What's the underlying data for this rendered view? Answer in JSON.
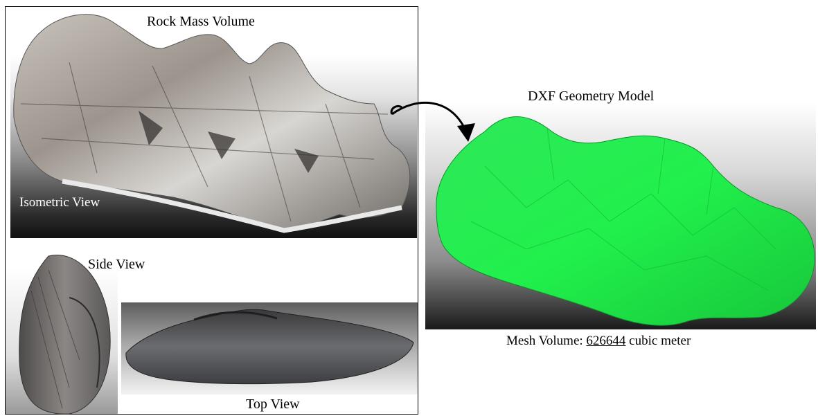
{
  "titles": {
    "rock_mass": "Rock Mass Volume",
    "dxf_model": "DXF Geometry Model"
  },
  "views": {
    "isometric": "Isometric View",
    "side": "Side View",
    "top": "Top View"
  },
  "mesh": {
    "prefix": "Mesh Volume: ",
    "value": "626644",
    "unit": " cubic meter"
  },
  "colors": {
    "mesh_green": "#22f04a",
    "rock_grey": "#8f8a86",
    "arrow": "#000000"
  },
  "icons": {
    "arrow": "curved-arrow-icon"
  }
}
